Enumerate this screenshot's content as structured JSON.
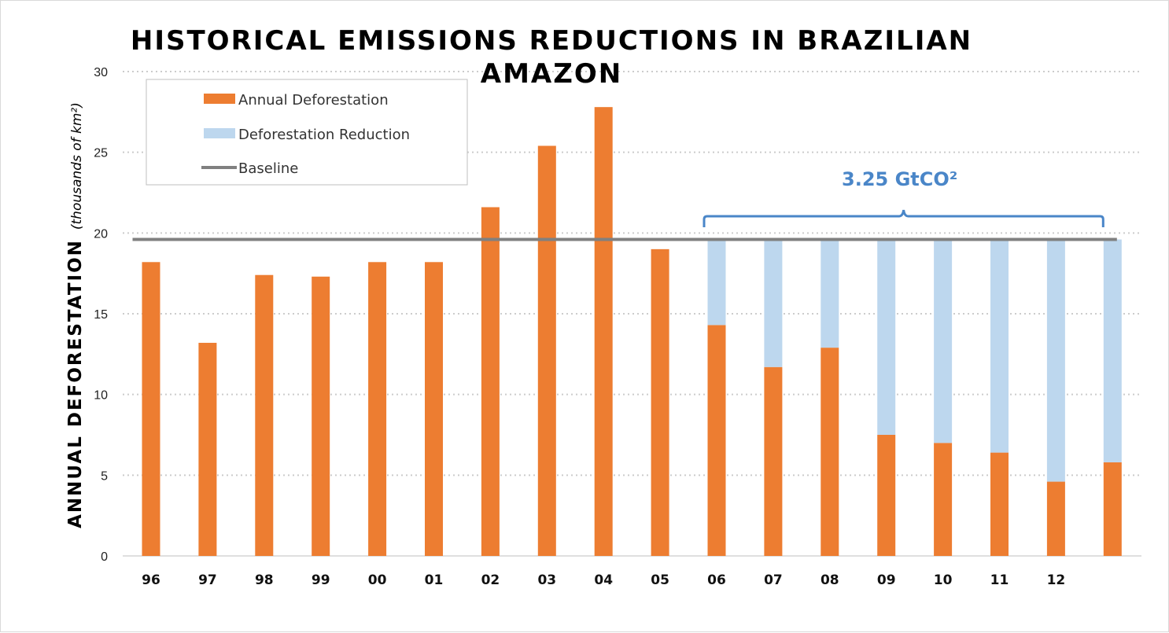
{
  "chart_data": {
    "type": "bar",
    "title_lines": [
      "HISTORICAL EMISSIONS REDUCTIONS IN BRAZILIAN",
      "AMAZON"
    ],
    "ylabel": "ANNUAL DEFORESTATION",
    "ylabel_unit": "(thousands of km²)",
    "ylim": [
      0,
      30
    ],
    "yticks": [
      "0",
      "5",
      "10",
      "15",
      "20",
      "25",
      "30"
    ],
    "grid": true,
    "legend_position": "top-left",
    "categories": [
      "96",
      "97",
      "98",
      "99",
      "00",
      "01",
      "02",
      "03",
      "04",
      "05",
      "06",
      "07",
      "08",
      "09",
      "10",
      "11",
      "12",
      ""
    ],
    "series": [
      {
        "name": "Annual Deforestation",
        "color": "#ed7d31",
        "values": [
          18.2,
          13.2,
          17.4,
          17.3,
          18.2,
          18.2,
          21.6,
          25.4,
          27.8,
          19.0,
          14.3,
          11.7,
          12.9,
          7.5,
          7.0,
          6.4,
          4.6,
          5.8
        ]
      },
      {
        "name": "Deforestation Reduction",
        "color": "#bdd7ee",
        "values": [
          null,
          null,
          null,
          null,
          null,
          null,
          null,
          null,
          null,
          null,
          5.3,
          7.9,
          6.7,
          12.1,
          12.6,
          13.2,
          15.0,
          13.8
        ]
      }
    ],
    "baseline": {
      "name": "Baseline",
      "value": 19.6,
      "color": "#808080"
    },
    "annotation": {
      "text": "3.25 GtCO²",
      "color": "#4a86c8",
      "from_category": "06",
      "to_category_index": 17
    }
  }
}
